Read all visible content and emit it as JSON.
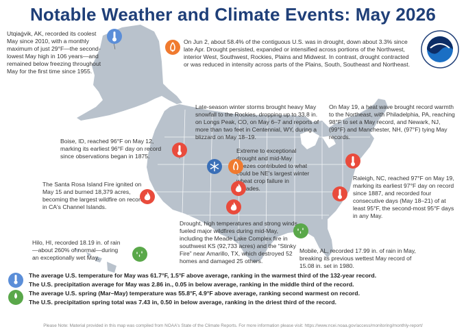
{
  "title": "Notable Weather and Climate Events: May 2026",
  "colors": {
    "title": "#1f3f78",
    "land": "#b9c2cc",
    "water": "#ffffff",
    "temperature_icon": "#e94b3c",
    "snow_icon": "#3a6fb7",
    "drought_icon": "#f07a2f",
    "precip_icon": "#5aa84a",
    "cold_icon": "#5b8ed8"
  },
  "events": {
    "alaska": "Utqiaġvik, AK, recorded its coolest May since 2010, with a monthly maximum of just 29°F—the second-lowest May high in 106 years—and remained below freezing throughout May for the first time since 1955.",
    "drought": "On Jun 2, about 58.4% of the contiguous U.S. was in drought, down about 3.3% since late Apr. Drought persisted, expanded or intensified across portions of the Northwest, interior West, Southwest, Rockies, Plains and Midwest. In contrast, drought contracted or was reduced in intensity across parts of the Plains, South, Southeast and Northeast.",
    "rockies_snow": "Late-season winter storms brought heavy May snowfall to the Rockies, dropping up to 33.8 in. on Longs Peak, CO, on May 6–7 and reports of more than two feet in Centennial, WY, during a blizzard on May 18–19.",
    "northeast_heat": "On May 19, a heat wave brought record warmth to the Northeast, with Philadelphia, PA, reaching 98°F to set a May record, and Newark, NJ, (99°F) and Manchester, NH, (97°F) tying May records.",
    "boise": "Boise, ID, reached 96°F on May 12, marking its earliest 96°F day on record since observations began in 1875.",
    "ne_freeze": "Extreme to exceptional drought and mid-May freezes contributed to what could be NE's largest winter wheat crop failure in decades.",
    "raleigh": "Raleigh, NC, reached 97°F on May 19, marking its earliest 97°F day on record since 1887, and recorded four consecutive days (May 18–21) of at least 95°F, the second-most 95°F days in any May.",
    "santa_rosa": "The Santa Rosa Island Fire ignited on May 15 and burned 18,379 acres, becoming the largest wildfire on record in CA's Channel Islands.",
    "plains_fire": "Drought, high temperatures and strong winds fueled major wildfires during mid-May, including the Meade Lake Complex fire in southwest KS (92,733 acres) and the “Stinky Fire” near Amarillo, TX, which destroyed 52 homes and damaged 25 others.",
    "hilo": "Hilo, HI, recorded 18.19 in. of rain—about 260% of normal—during an exceptionally wet May.",
    "mobile": "Mobile, AL, recorded 17.99 in. of rain in May, breaking its previous wettest May record of 15.08 in. set in 1980."
  },
  "summary": [
    "The average U.S. temperature for May was 61.7°F, 1.5°F above average, ranking in the warmest third of the 132-year record.",
    "The U.S. precipitation average for May was 2.86 in., 0.05 in below average, ranking in the middle third of the record.",
    "The average U.S. spring (Mar–May) temperature was 55.8°F, 4.9°F above average, ranking second warmest on record.",
    "The U.S. precipitation spring total was 7.43 in, 0.50 in below average, ranking in the driest third of the record."
  ],
  "footer": "Please Note: Material provided in this map was compiled from NOAA's State of the Climate Reports. For more information please visit: https://www.ncei.noaa.gov/access/monitoring/monthly-report/",
  "logo": {
    "text": "NOAA",
    "ring_text": "NATIONAL OCEANIC AND ATMOSPHERIC ADMINISTRATION · U.S. DEPARTMENT OF COMMERCE"
  }
}
